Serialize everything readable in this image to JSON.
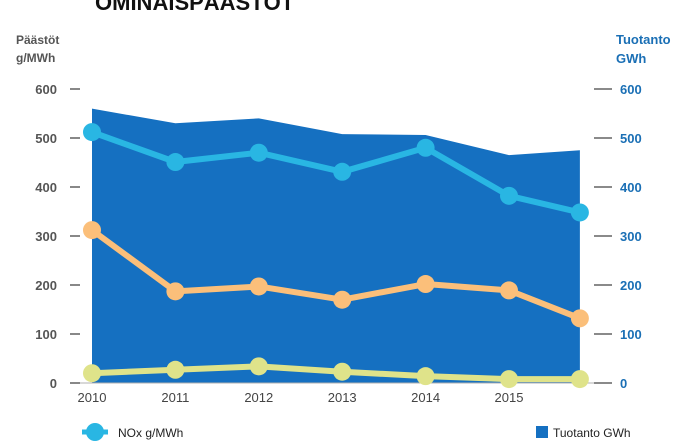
{
  "chart_data": {
    "type": "line",
    "title": "OMINAISPÄÄSTÖT",
    "ylabel_left": [
      "Päästöt",
      "g/MWh"
    ],
    "ylabel_right": [
      "Tuotanto",
      "GWh"
    ],
    "categories": [
      "2010",
      "2011",
      "2012",
      "2013",
      "2014",
      "2015"
    ],
    "ylim": [
      0,
      600
    ],
    "yticks": [
      0,
      100,
      200,
      300,
      400,
      500,
      600
    ],
    "area_series": {
      "name": "Tuotanto GWh",
      "color": "#1570c1",
      "x": [
        2010,
        2011,
        2012,
        2013,
        2014,
        2015,
        2015.85
      ],
      "values": [
        560,
        530,
        540,
        508,
        506,
        465,
        475
      ]
    },
    "series": [
      {
        "name": "NOx g/MWh",
        "color": "#29b6e3",
        "x": [
          2010,
          2011,
          2012,
          2013,
          2014,
          2015,
          2015.85
        ],
        "values": [
          512,
          451,
          470,
          431,
          480,
          382,
          348
        ]
      },
      {
        "color": "#fbbf7a",
        "x": [
          2010,
          2011,
          2012,
          2013,
          2014,
          2015,
          2015.85
        ],
        "values": [
          312,
          187,
          197,
          170,
          202,
          189,
          132
        ]
      },
      {
        "color": "#dfe38a",
        "x": [
          2010,
          2011,
          2012,
          2013,
          2014,
          2015,
          2015.85
        ],
        "values": [
          20,
          27,
          34,
          23,
          14,
          8,
          8
        ]
      }
    ],
    "legend": [
      {
        "label": "NOx g/MWh",
        "kind": "line",
        "color": "#29b6e3"
      },
      {
        "label": "Tuotanto GWh",
        "kind": "box",
        "color": "#1570c1"
      }
    ],
    "grid": false
  }
}
